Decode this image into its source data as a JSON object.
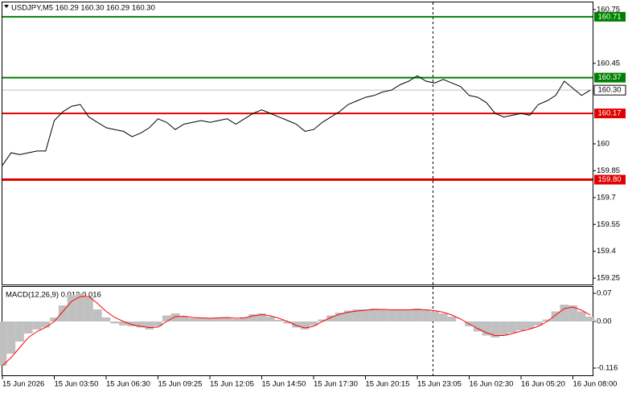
{
  "chart_data": [
    {
      "type": "line",
      "title": "USDJPY,M5  160.29 160.30 160.29 160.30",
      "color": "#000000",
      "values": [
        159.88,
        159.95,
        159.94,
        159.95,
        159.96,
        159.96,
        160.13,
        160.18,
        160.21,
        160.22,
        160.15,
        160.12,
        160.09,
        160.08,
        160.07,
        160.04,
        160.06,
        160.09,
        160.14,
        160.12,
        160.08,
        160.11,
        160.12,
        160.13,
        160.12,
        160.13,
        160.14,
        160.11,
        160.14,
        160.17,
        160.19,
        160.17,
        160.15,
        160.13,
        160.11,
        160.07,
        160.08,
        160.12,
        160.15,
        160.18,
        160.22,
        160.24,
        160.26,
        160.27,
        160.29,
        160.3,
        160.33,
        160.35,
        160.38,
        160.35,
        160.34,
        160.36,
        160.34,
        160.32,
        160.27,
        160.26,
        160.23,
        160.17,
        160.15,
        160.16,
        160.17,
        160.16,
        160.22,
        160.24,
        160.27,
        160.35,
        160.31,
        160.27,
        160.3
      ],
      "ylim": [
        159.21,
        160.79
      ],
      "yticks": [
        159.25,
        159.4,
        159.55,
        159.7,
        159.85,
        160.0,
        160.45,
        160.75
      ],
      "levels": [
        {
          "value": 160.71,
          "color": "#008000"
        },
        {
          "value": 160.37,
          "color": "#008000"
        },
        {
          "value": 160.3,
          "label": "160.30",
          "color": "#c0c0c0"
        },
        {
          "value": 160.17,
          "color": "#e00000"
        },
        {
          "value": 159.8,
          "label": "159.80",
          "color": "#e00000"
        }
      ]
    },
    {
      "type": "macd",
      "title": "MACD(12,26,9) 0.012 0.016",
      "categories": [
        "15 Jun 2026",
        null,
        null,
        null,
        null,
        null,
        "15 Jun 03:50",
        null,
        null,
        null,
        null,
        null,
        "15 Jun 06:30",
        null,
        null,
        null,
        null,
        null,
        "15 Jun 09:25",
        null,
        null,
        null,
        null,
        null,
        "15 Jun 12:05",
        null,
        null,
        null,
        null,
        null,
        "15 Jun 14:50",
        null,
        null,
        null,
        null,
        null,
        "15 Jun 17:30",
        null,
        null,
        null,
        null,
        null,
        "15 Jun 20:15",
        null,
        null,
        null,
        null,
        null,
        "15 Jun 23:05",
        null,
        null,
        null,
        null,
        null,
        "16 Jun 02:30",
        null,
        null,
        null,
        null,
        null,
        "16 Jun 05:20",
        null,
        null,
        null,
        null,
        null,
        "16 Jun 08:00",
        null,
        null
      ],
      "series": [
        {
          "kind": "bar",
          "color": "#c0c0c0",
          "values": [
            -0.11,
            -0.08,
            -0.05,
            -0.03,
            -0.02,
            -0.015,
            0.01,
            0.04,
            0.065,
            0.07,
            0.06,
            0.03,
            0.01,
            -0.005,
            -0.01,
            -0.012,
            -0.015,
            -0.02,
            -0.012,
            0.015,
            0.02,
            0.012,
            0.008,
            0.008,
            0.008,
            0.01,
            0.01,
            0.006,
            0.01,
            0.018,
            0.02,
            0.012,
            0.004,
            -0.005,
            -0.015,
            -0.02,
            -0.01,
            0.005,
            0.015,
            0.022,
            0.027,
            0.03,
            0.03,
            0.032,
            0.03,
            0.028,
            0.03,
            0.03,
            0.032,
            0.028,
            0.025,
            0.02,
            0.012,
            0.0,
            -0.012,
            -0.025,
            -0.035,
            -0.04,
            -0.035,
            -0.028,
            -0.022,
            -0.018,
            -0.01,
            0.005,
            0.025,
            0.042,
            0.04,
            0.025,
            0.012
          ]
        },
        {
          "kind": "line",
          "color": "#ff0000",
          "values": [
            -0.11,
            -0.09,
            -0.065,
            -0.04,
            -0.025,
            -0.015,
            0.0,
            0.025,
            0.05,
            0.062,
            0.062,
            0.045,
            0.025,
            0.01,
            0.0,
            -0.008,
            -0.012,
            -0.015,
            -0.014,
            0.0,
            0.012,
            0.013,
            0.01,
            0.009,
            0.008,
            0.009,
            0.01,
            0.008,
            0.009,
            0.014,
            0.017,
            0.014,
            0.008,
            0.0,
            -0.01,
            -0.016,
            -0.012,
            0.0,
            0.01,
            0.018,
            0.023,
            0.026,
            0.028,
            0.03,
            0.03,
            0.029,
            0.029,
            0.029,
            0.03,
            0.029,
            0.027,
            0.023,
            0.016,
            0.006,
            -0.006,
            -0.018,
            -0.028,
            -0.035,
            -0.035,
            -0.03,
            -0.024,
            -0.019,
            -0.012,
            0.0,
            0.016,
            0.032,
            0.036,
            0.028,
            0.016
          ]
        }
      ],
      "ylim": [
        -0.136,
        0.086
      ],
      "yticks": [
        0.07,
        {
          "value": 0,
          "label": "0.00"
        },
        -0.116
      ]
    }
  ]
}
